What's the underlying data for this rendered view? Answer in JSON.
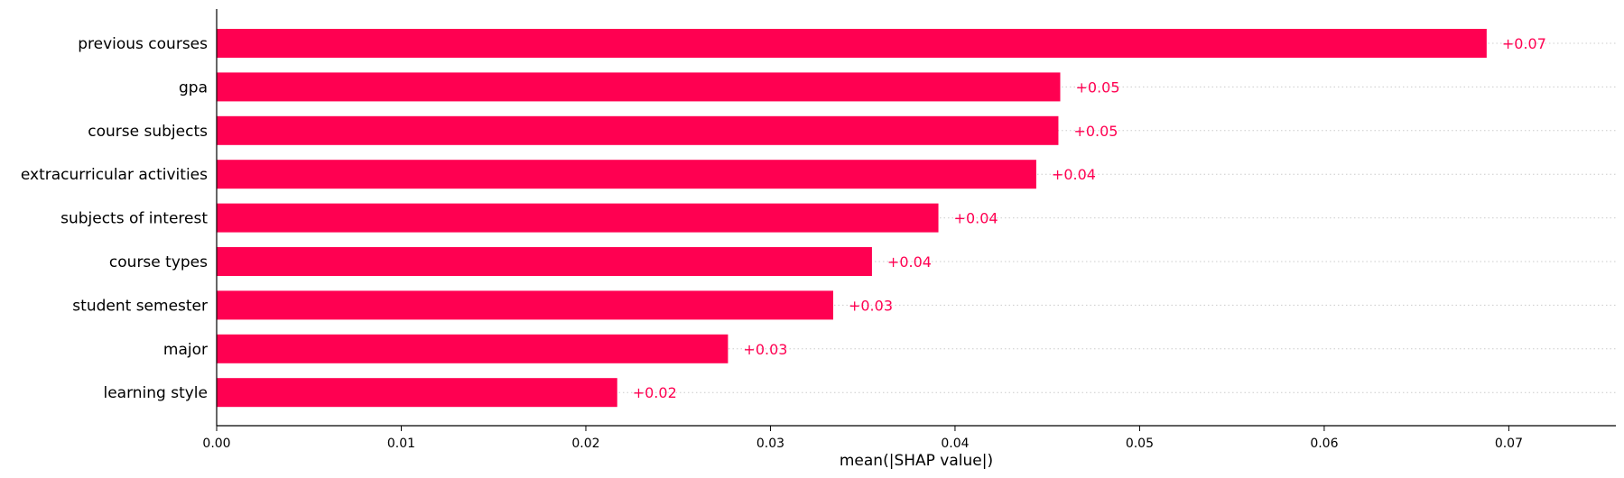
{
  "chart_data": {
    "type": "bar",
    "orientation": "horizontal",
    "title": "",
    "xlabel": "mean(|SHAP value|)",
    "ylabel": "",
    "xlim": [
      0.0,
      0.0758
    ],
    "xticks": [
      "0.00",
      "0.01",
      "0.02",
      "0.03",
      "0.04",
      "0.05",
      "0.06",
      "0.07"
    ],
    "grid": "dotted horizontal lines per bar",
    "legend": "none",
    "color": "#ff0051",
    "categories": [
      "previous courses",
      "gpa",
      "course subjects",
      "extracurricular activities",
      "subjects of interest",
      "course types",
      "student semester",
      "major",
      "learning style"
    ],
    "values": [
      0.0688,
      0.0457,
      0.0456,
      0.0444,
      0.0391,
      0.0355,
      0.0334,
      0.0277,
      0.0217
    ],
    "value_labels": [
      "+0.07",
      "+0.05",
      "+0.05",
      "+0.04",
      "+0.04",
      "+0.04",
      "+0.03",
      "+0.03",
      "+0.02"
    ]
  }
}
